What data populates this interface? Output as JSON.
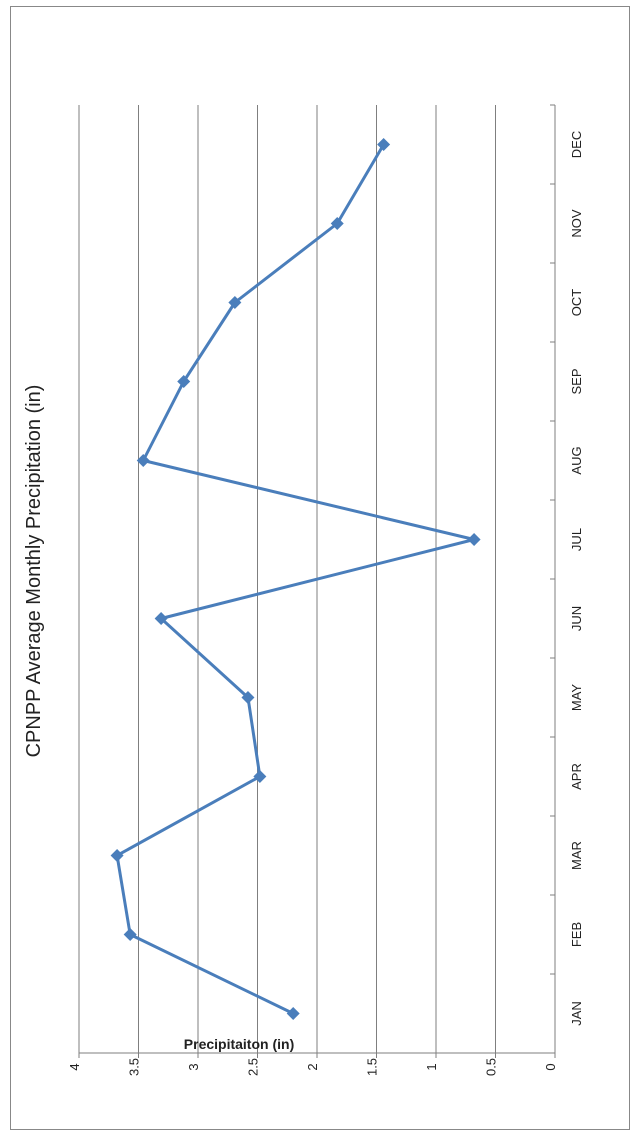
{
  "chart_data": {
    "type": "line",
    "title": "CPNPP Average Monthly  Precipitation (in)",
    "ylabel": "Precipitaiton (in)",
    "xlabel": "",
    "categories": [
      "JAN",
      "FEB",
      "MAR",
      "APR",
      "MAY",
      "JUN",
      "JUL",
      "AUG",
      "SEP",
      "OCT",
      "NOV",
      "DEC"
    ],
    "series": [
      {
        "values": [
          2.2,
          3.57,
          3.68,
          2.48,
          2.58,
          3.31,
          0.68,
          3.46,
          3.12,
          2.69,
          1.83,
          1.44
        ]
      }
    ],
    "ylim": [
      0,
      4
    ],
    "yticks": [
      "0",
      "0.5",
      "1",
      "1.5",
      "2",
      "2.5",
      "3",
      "3.5",
      "4"
    ],
    "grid": true,
    "orientation": "rotated-180",
    "colors": {
      "series": "#4a7ebb",
      "grid": "#7f7f7f",
      "axis": "#7f7f7f"
    }
  }
}
